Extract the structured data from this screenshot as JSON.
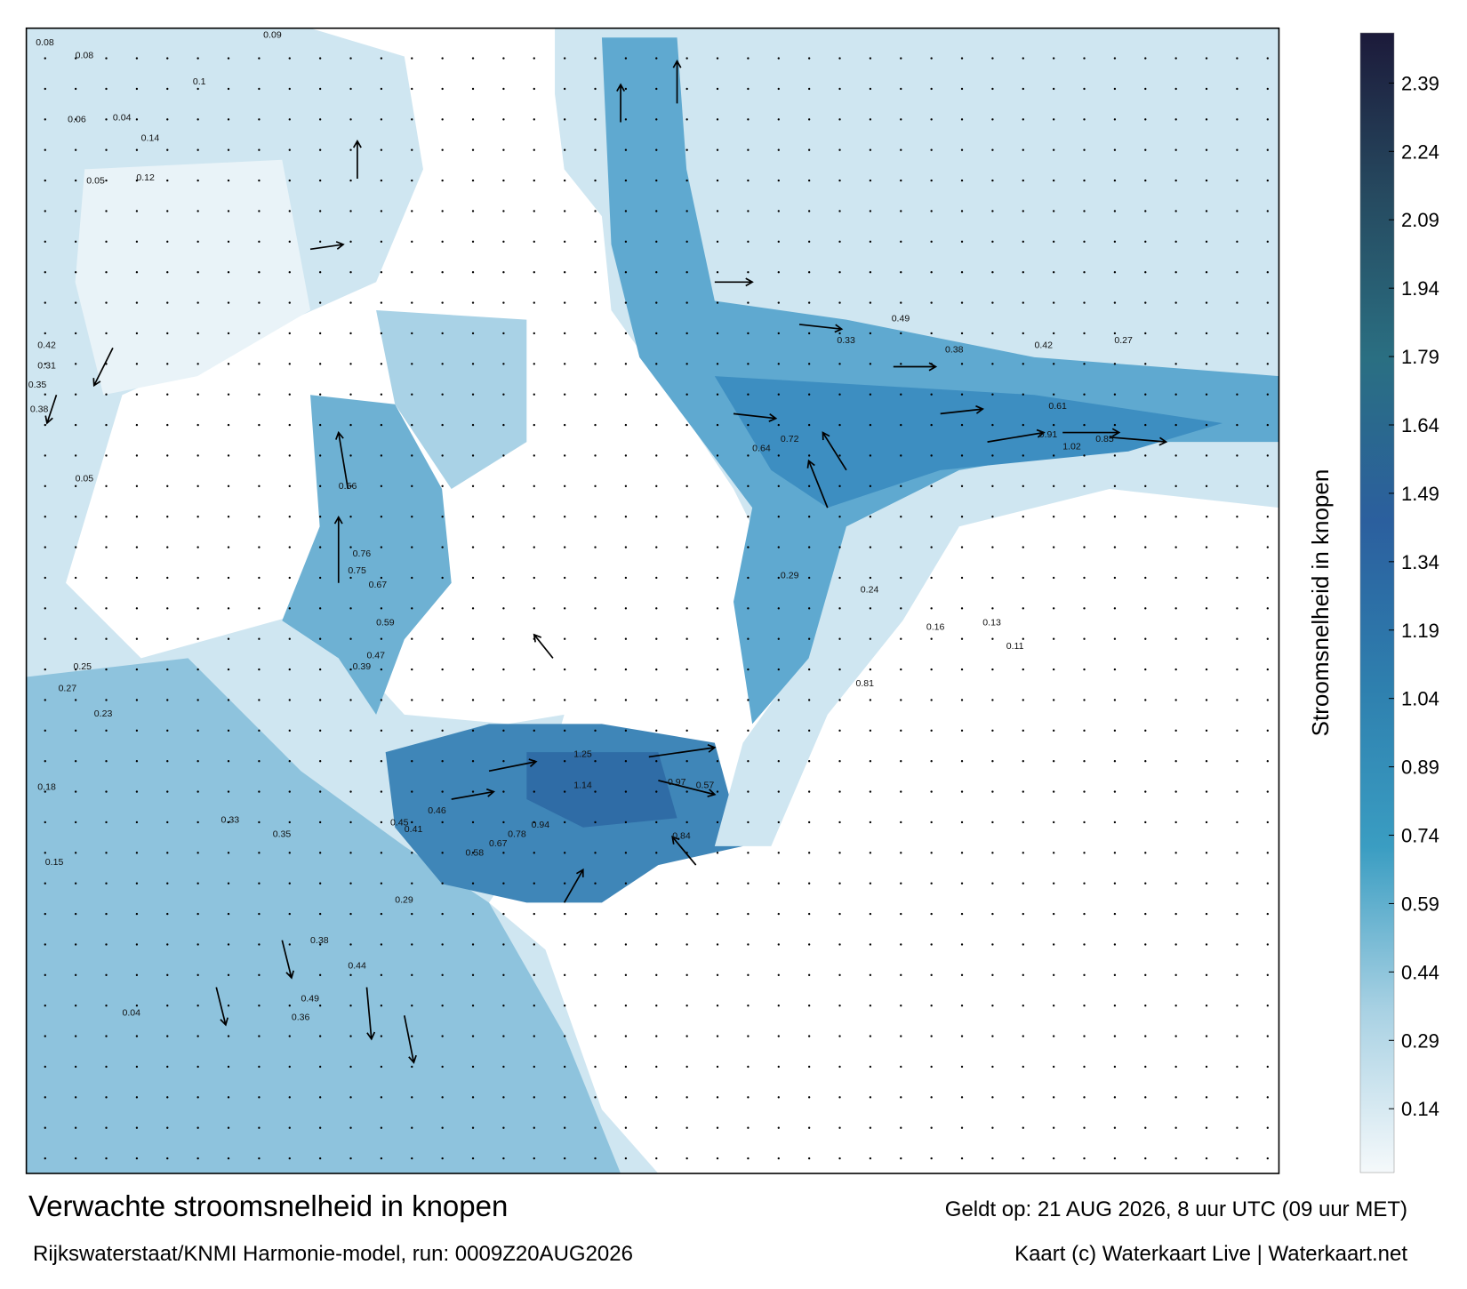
{
  "title": "Verwachte stroomsnelheid in knopen",
  "source": "Rijkswaterstaat/KNMI Harmonie-model, run: 0009Z20AUG2026",
  "valid_time": "Geldt op: 21 AUG 2026, 8 uur UTC (09 uur MET)",
  "credit": "Kaart (c) Waterkaart Live | Waterkaart.net",
  "colorbar": {
    "label": "Stroomsnelheid in knopen",
    "lim": [
      0,
      2.5
    ],
    "ticks": [
      0.14,
      0.29,
      0.44,
      0.59,
      0.74,
      0.89,
      1.04,
      1.19,
      1.34,
      1.49,
      1.64,
      1.79,
      1.94,
      2.09,
      2.24,
      2.39
    ],
    "colors": [
      "#f5f9fb",
      "#a8d1e3",
      "#3a9dc2",
      "#2e7fae",
      "#2b5f9e",
      "#2a6f82",
      "#264a60",
      "#1c1a3a"
    ]
  },
  "map_labels": [
    0.08,
    0.08,
    0.06,
    0.04,
    0.05,
    0.1,
    0.14,
    0.12,
    0.31,
    0.35,
    0.38,
    0.42,
    0.27,
    0.25,
    0.23,
    0.18,
    0.15,
    0.09,
    0.05,
    0.56,
    0.76,
    0.75,
    0.67,
    0.59,
    0.47,
    0.39,
    0.29,
    1.25,
    1.14,
    0.97,
    0.57,
    0.94,
    0.78,
    0.67,
    0.58,
    0.46,
    0.45,
    0.41,
    0.33,
    0.84,
    0.81,
    0.72,
    0.64,
    0.91,
    1.02,
    0.85,
    0.61,
    0.49,
    0.42,
    0.38,
    0.33,
    0.29,
    0.24,
    0.16,
    0.13,
    0.11,
    0.04,
    0.44,
    0.49,
    0.38,
    0.36,
    0.35,
    0.27
  ]
}
